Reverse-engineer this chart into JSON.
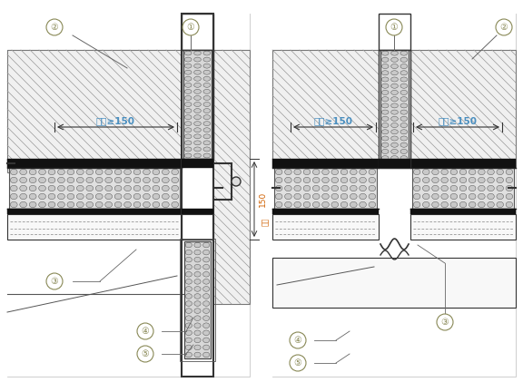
{
  "bg_color": "#ffffff",
  "lc": "#1a1a1a",
  "text_blue": "#4a8fc0",
  "text_orange": "#d06000",
  "fig_width": 5.76,
  "fig_height": 4.32,
  "dpi": 100,
  "annotation": "翻包≥150"
}
